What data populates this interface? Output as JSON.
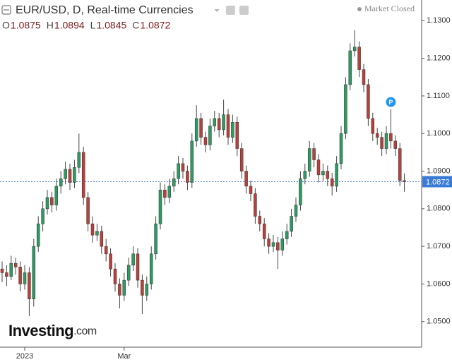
{
  "chart_data": {
    "type": "candlestick",
    "title": "EUR/USD, D, Real-time Currencies",
    "status": "Market Closed",
    "ohlc_header": [
      {
        "label": "O",
        "value": 1.0875
      },
      {
        "label": "H",
        "value": 1.0894
      },
      {
        "label": "L",
        "value": 1.0845
      },
      {
        "label": "C",
        "value": 1.0872
      }
    ],
    "last_price": {
      "value": 1.0872,
      "label": "1.0872"
    },
    "marker": "P",
    "logo": {
      "main": "Investing",
      "suffix": ".com"
    },
    "up_color": "#2e9a62",
    "down_color": "#b8403a",
    "grid": false,
    "categories": [
      null,
      null,
      null,
      null,
      null,
      "2023",
      null,
      null,
      null,
      null,
      null,
      null,
      null,
      null,
      null,
      null,
      null,
      null,
      null,
      null,
      null,
      null,
      null,
      null,
      null,
      null,
      null,
      "Mar",
      null,
      null,
      null,
      null,
      null,
      null,
      null,
      null,
      null,
      null,
      null,
      null,
      null,
      null,
      null,
      null,
      null,
      null,
      null,
      null,
      null,
      null,
      null,
      null,
      null,
      null,
      null,
      null,
      null,
      null,
      null,
      null,
      null,
      null,
      null,
      null,
      null,
      null,
      null,
      null,
      null,
      null,
      null,
      null,
      null,
      null,
      null,
      null,
      null,
      null,
      null,
      null,
      null,
      null,
      null,
      null,
      null,
      null,
      null,
      null,
      null,
      null
    ],
    "open": [
      1.064,
      1.063,
      1.062,
      1.0655,
      1.0645,
      1.06,
      1.063,
      1.056,
      1.07,
      1.076,
      1.08,
      1.083,
      1.081,
      1.086,
      1.088,
      1.0905,
      1.087,
      1.091,
      1.095,
      1.083,
      1.076,
      1.073,
      1.074,
      1.07,
      1.068,
      1.064,
      1.06,
      1.057,
      1.061,
      1.065,
      1.068,
      1.061,
      1.057,
      1.06,
      1.068,
      1.076,
      1.085,
      1.083,
      1.086,
      1.088,
      1.092,
      1.09,
      1.087,
      1.098,
      1.104,
      1.099,
      1.097,
      1.102,
      1.104,
      1.101,
      1.105,
      1.099,
      1.103,
      1.096,
      1.09,
      1.086,
      1.084,
      1.078,
      1.076,
      1.072,
      1.07,
      1.071,
      1.069,
      1.072,
      1.074,
      1.078,
      1.081,
      1.088,
      1.09,
      1.096,
      1.093,
      1.089,
      1.09,
      1.088,
      1.086,
      1.092,
      1.1,
      1.113,
      1.122,
      1.123,
      1.117,
      1.113,
      1.104,
      1.1,
      1.099,
      1.096,
      1.1,
      1.098,
      1.096,
      1.0875
    ],
    "high": [
      1.066,
      1.065,
      1.0675,
      1.067,
      1.066,
      1.065,
      1.0645,
      1.072,
      1.078,
      1.082,
      1.085,
      1.0845,
      1.088,
      1.09,
      1.0925,
      1.092,
      1.093,
      1.1,
      1.0965,
      1.0845,
      1.078,
      1.076,
      1.0755,
      1.072,
      1.0695,
      1.0655,
      1.0615,
      1.063,
      1.067,
      1.07,
      1.0695,
      1.0625,
      1.062,
      1.07,
      1.078,
      1.087,
      1.0865,
      1.088,
      1.09,
      1.094,
      1.0935,
      1.0915,
      1.1,
      1.1075,
      1.1055,
      1.1005,
      1.104,
      1.106,
      1.1055,
      1.109,
      1.1065,
      1.105,
      1.1045,
      1.0975,
      1.0915,
      1.0875,
      1.0855,
      1.0795,
      1.0775,
      1.0735,
      1.073,
      1.0725,
      1.074,
      1.076,
      1.08,
      1.083,
      1.09,
      1.092,
      1.098,
      1.0975,
      1.0945,
      1.092,
      1.0915,
      1.0895,
      1.094,
      1.102,
      1.115,
      1.124,
      1.1275,
      1.1245,
      1.1185,
      1.1145,
      1.1055,
      1.1015,
      1.1005,
      1.102,
      1.1065,
      1.0995,
      1.0975,
      1.0894
    ],
    "low": [
      1.0605,
      1.0595,
      1.061,
      1.0625,
      1.058,
      1.0585,
      1.0515,
      1.054,
      1.0685,
      1.074,
      1.0785,
      1.079,
      1.0795,
      1.084,
      1.0865,
      1.085,
      1.0855,
      1.0895,
      1.081,
      1.074,
      1.071,
      1.0715,
      1.068,
      1.066,
      1.062,
      1.058,
      1.0535,
      1.0555,
      1.0595,
      1.0635,
      1.059,
      1.052,
      1.0555,
      1.0585,
      1.0665,
      1.0745,
      1.081,
      1.0815,
      1.0845,
      1.0865,
      1.088,
      1.085,
      1.0855,
      1.0965,
      1.097,
      1.095,
      1.0955,
      1.1005,
      1.099,
      1.0995,
      1.097,
      1.0975,
      1.094,
      1.088,
      1.084,
      1.082,
      1.076,
      1.074,
      1.07,
      1.068,
      1.0685,
      1.064,
      1.0675,
      1.0705,
      1.0725,
      1.0765,
      1.0795,
      1.0865,
      1.0885,
      1.091,
      1.087,
      1.0875,
      1.086,
      1.0835,
      1.0845,
      1.0905,
      1.0985,
      1.1115,
      1.1205,
      1.115,
      1.111,
      1.102,
      1.098,
      1.097,
      1.094,
      1.0945,
      1.096,
      1.094,
      1.086,
      1.0845
    ],
    "close": [
      1.063,
      1.062,
      1.0655,
      1.0645,
      1.06,
      1.063,
      1.056,
      1.07,
      1.076,
      1.08,
      1.083,
      1.081,
      1.086,
      1.088,
      1.0905,
      1.087,
      1.091,
      1.095,
      1.083,
      1.076,
      1.073,
      1.074,
      1.07,
      1.068,
      1.064,
      1.06,
      1.057,
      1.061,
      1.065,
      1.068,
      1.061,
      1.057,
      1.06,
      1.068,
      1.076,
      1.085,
      1.083,
      1.086,
      1.088,
      1.092,
      1.09,
      1.087,
      1.098,
      1.104,
      1.099,
      1.097,
      1.102,
      1.104,
      1.101,
      1.105,
      1.099,
      1.103,
      1.096,
      1.09,
      1.086,
      1.084,
      1.078,
      1.076,
      1.072,
      1.07,
      1.071,
      1.069,
      1.072,
      1.074,
      1.078,
      1.081,
      1.088,
      1.09,
      1.096,
      1.093,
      1.089,
      1.09,
      1.088,
      1.086,
      1.092,
      1.1,
      1.113,
      1.122,
      1.123,
      1.117,
      1.113,
      1.104,
      1.1,
      1.099,
      1.096,
      1.1,
      1.098,
      1.096,
      1.0875,
      1.0872
    ],
    "marker_index": 86,
    "ylim": [
      1.0432,
      1.1355
    ],
    "yticks": [
      {
        "value": 1.05,
        "label": "1.0500"
      },
      {
        "value": 1.06,
        "label": "1.0600"
      },
      {
        "value": 1.07,
        "label": "1.0700"
      },
      {
        "value": 1.08,
        "label": "1.0800"
      },
      {
        "value": 1.09,
        "label": "1.0900"
      },
      {
        "value": 1.1,
        "label": "1.1000"
      },
      {
        "value": 1.11,
        "label": "1.1100"
      },
      {
        "value": 1.12,
        "label": "1.1200"
      },
      {
        "value": 1.13,
        "label": "1.1300"
      }
    ]
  }
}
